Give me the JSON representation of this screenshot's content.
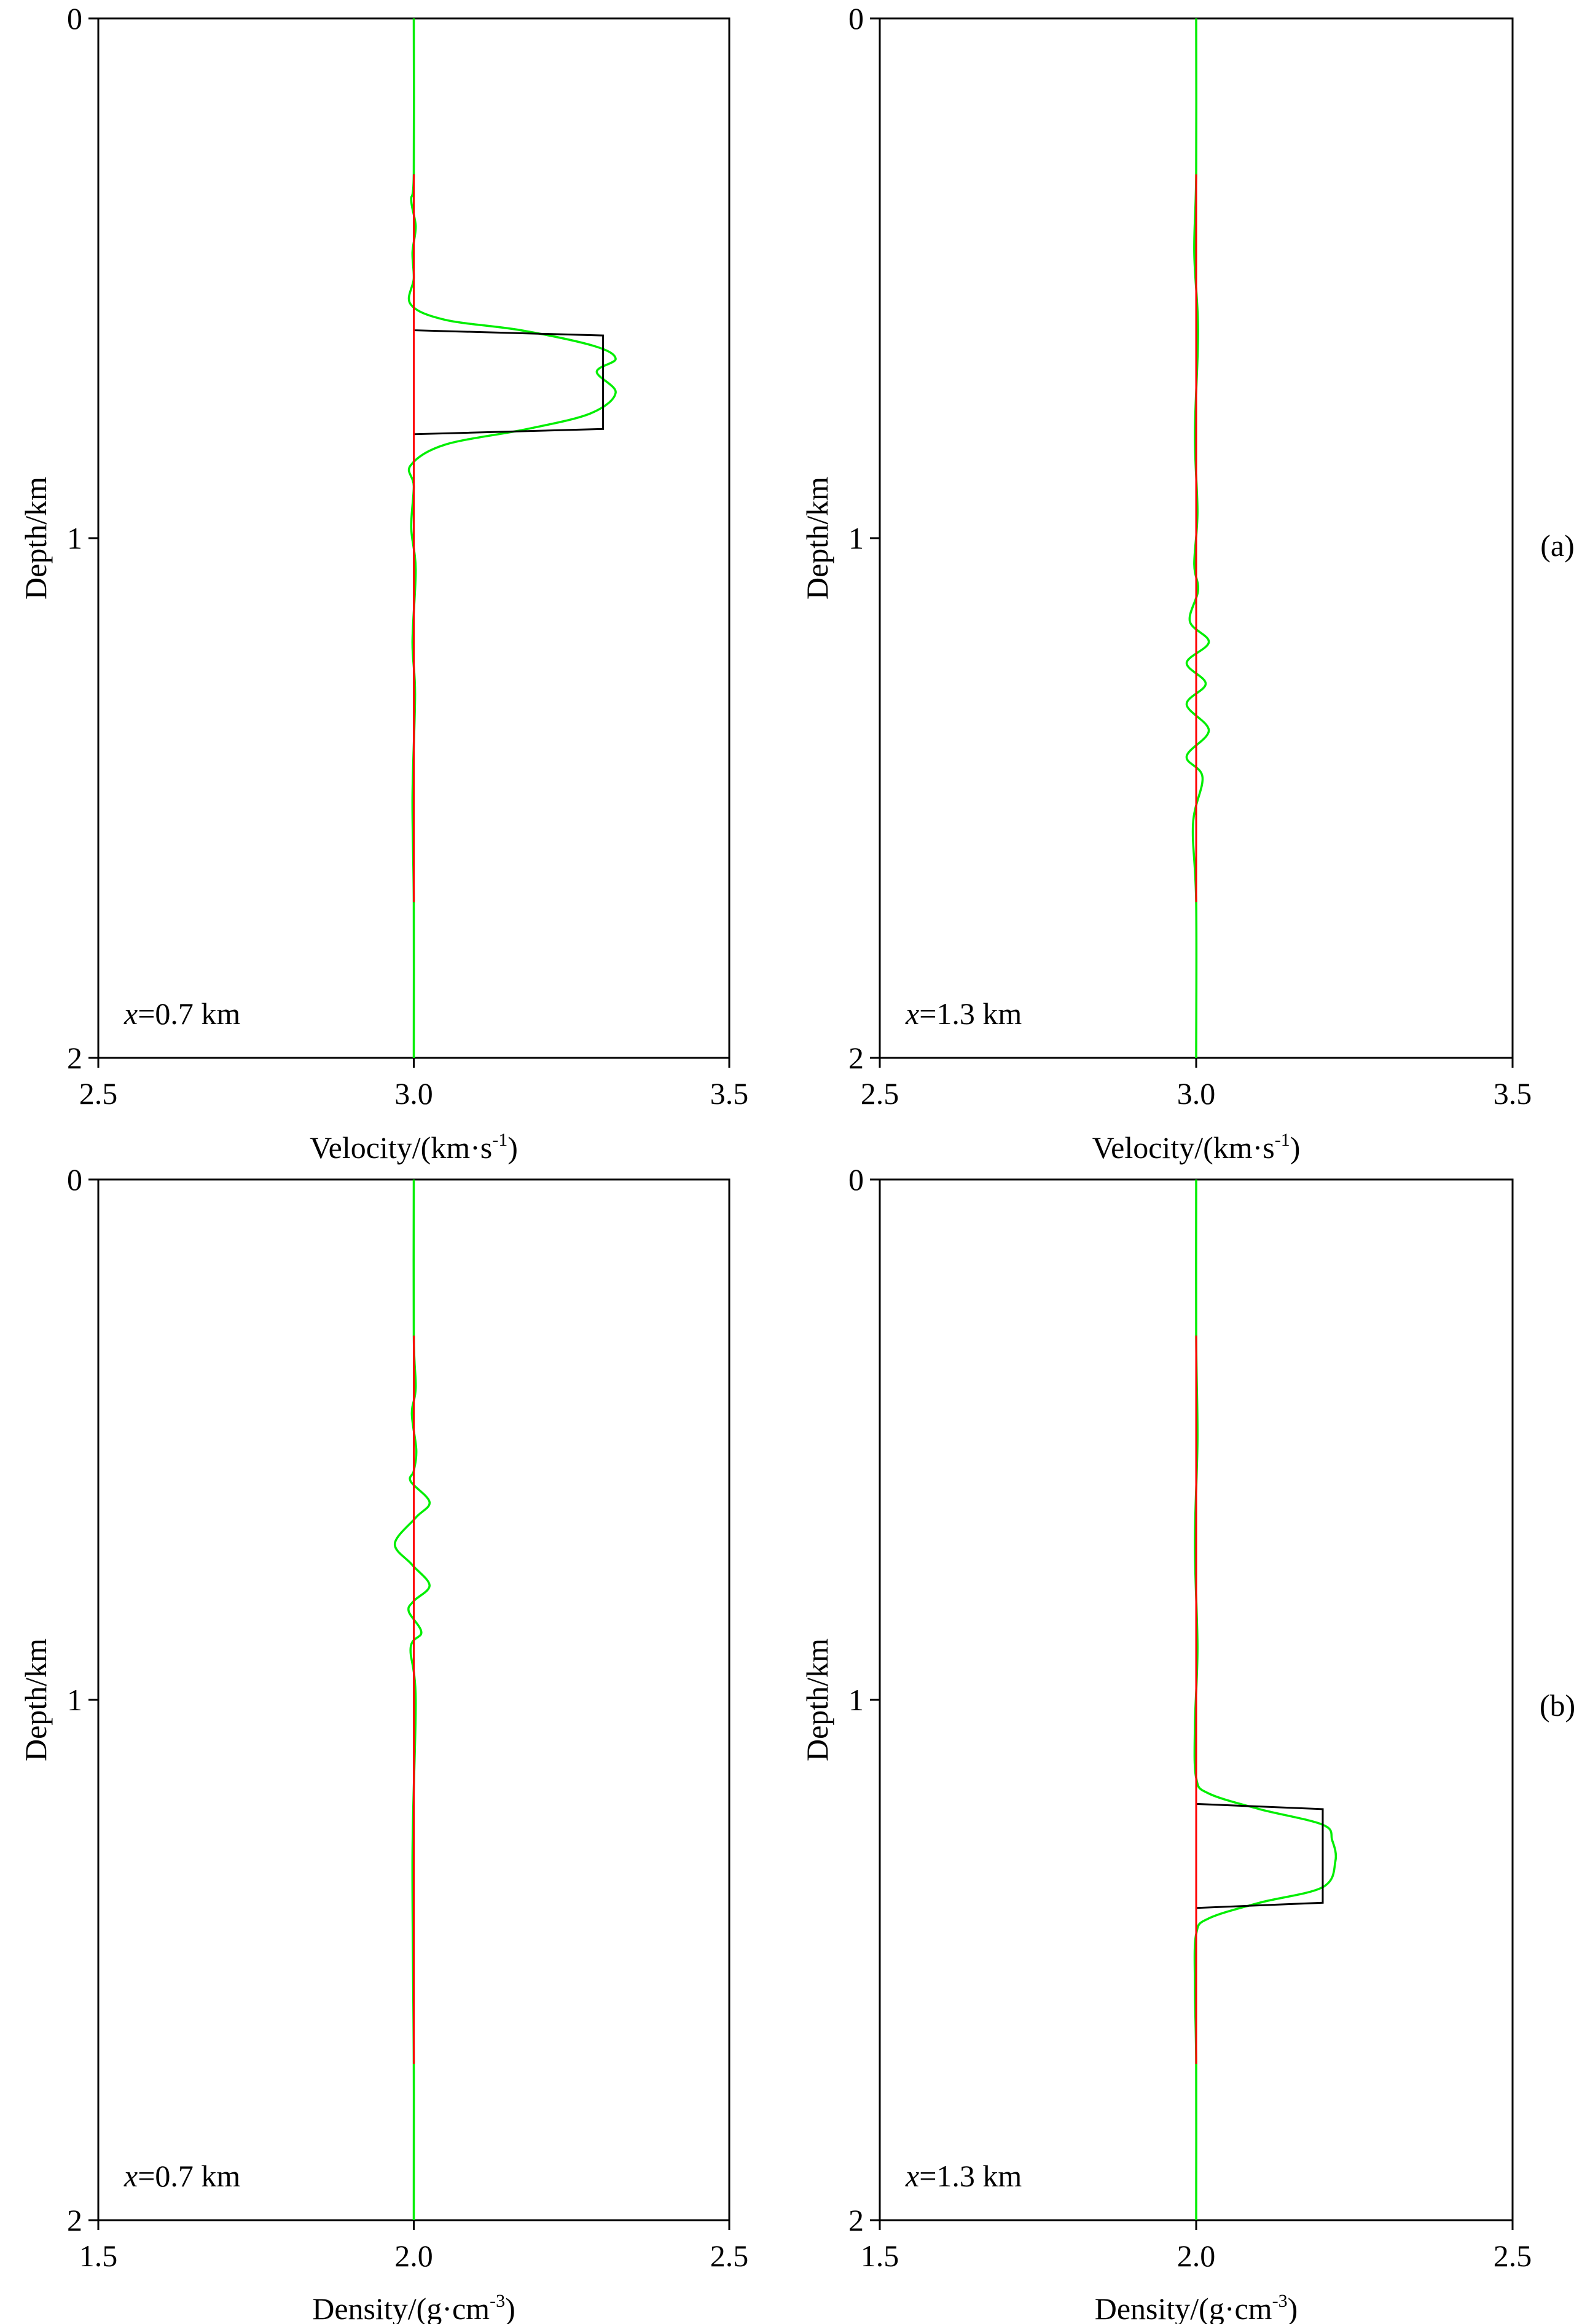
{
  "figure_labels": [
    "(a)",
    "(b)"
  ],
  "colors": {
    "true_model": "#000000",
    "initial_model": "#ff0000",
    "inverted_model": "#00ee00"
  },
  "chart_data": [
    {
      "type": "line",
      "panel": "a-left",
      "xlabel": "Velocity/(km·s",
      "xlabel_sup": "-1",
      "xlabel_end": ")",
      "ylabel": "Depth/km",
      "xlim": [
        2.5,
        3.5
      ],
      "ylim": [
        0,
        2
      ],
      "xticks": [
        "2.5",
        "3.0",
        "3.5"
      ],
      "yticks": [
        "0",
        "1",
        "2"
      ],
      "annotation_var": "x",
      "annotation_value": "=0.7 km",
      "baseline": 3.0,
      "anomaly": {
        "top": 0.6,
        "bottom": 0.79,
        "value": 3.3
      },
      "series": [
        {
          "name": "true",
          "x": [
            3.0,
            3.0,
            3.3,
            3.3,
            3.0,
            3.0
          ],
          "depth": [
            0.3,
            0.6,
            0.61,
            0.79,
            0.8,
            1.7
          ]
        },
        {
          "name": "initial",
          "x": [
            3.0,
            3.0
          ],
          "depth": [
            0.3,
            1.7
          ]
        },
        {
          "name": "inverted",
          "x": [
            3.0,
            3.0,
            2.996,
            3.003,
            2.998,
            3.0,
            2.995,
            3.05,
            3.17,
            3.285,
            3.32,
            3.29,
            3.32,
            3.28,
            3.18,
            3.05,
            2.995,
            3.0,
            2.996,
            3.003,
            2.998,
            3.002,
            2.998,
            3.0,
            3.0
          ],
          "depth": [
            0.0,
            0.3,
            0.35,
            0.4,
            0.45,
            0.5,
            0.55,
            0.58,
            0.6,
            0.63,
            0.655,
            0.68,
            0.72,
            0.76,
            0.79,
            0.82,
            0.86,
            0.9,
            0.98,
            1.06,
            1.2,
            1.3,
            1.5,
            1.7,
            2.0
          ]
        }
      ]
    },
    {
      "type": "line",
      "panel": "a-right",
      "xlabel": "Velocity/(km·s",
      "xlabel_sup": "-1",
      "xlabel_end": ")",
      "ylabel": "Depth/km",
      "xlim": [
        2.5,
        3.5
      ],
      "ylim": [
        0,
        2
      ],
      "xticks": [
        "2.5",
        "3.0",
        "3.5"
      ],
      "yticks": [
        "0",
        "1",
        "2"
      ],
      "annotation_var": "x",
      "annotation_value": "=1.3 km",
      "baseline": 3.0,
      "series": [
        {
          "name": "initial",
          "x": [
            3.0,
            3.0
          ],
          "depth": [
            0.3,
            1.7
          ]
        },
        {
          "name": "inverted",
          "x": [
            3.0,
            3.0,
            2.997,
            3.003,
            2.998,
            3.002,
            2.997,
            3.003,
            2.99,
            3.02,
            2.985,
            3.015,
            2.985,
            3.02,
            2.985,
            3.01,
            2.995,
            3.0,
            3.0
          ],
          "depth": [
            0.0,
            0.3,
            0.45,
            0.6,
            0.8,
            0.95,
            1.05,
            1.1,
            1.16,
            1.2,
            1.24,
            1.28,
            1.32,
            1.37,
            1.42,
            1.46,
            1.55,
            1.7,
            2.0
          ]
        }
      ]
    },
    {
      "type": "line",
      "panel": "b-left",
      "xlabel": "Density/(g·cm",
      "xlabel_sup": "-3",
      "xlabel_end": ")",
      "ylabel": "Depth/km",
      "xlim": [
        1.5,
        2.5
      ],
      "ylim": [
        0,
        2
      ],
      "xticks": [
        "1.5",
        "2.0",
        "2.5"
      ],
      "yticks": [
        "0",
        "1",
        "2"
      ],
      "annotation_var": "x",
      "annotation_value": "=0.7 km",
      "baseline": 2.0,
      "series": [
        {
          "name": "initial",
          "x": [
            2.0,
            2.0
          ],
          "depth": [
            0.3,
            1.7
          ]
        },
        {
          "name": "inverted",
          "x": [
            2.0,
            2.0,
            2.003,
            1.997,
            2.004,
            2.0,
            1.995,
            2.025,
            2.003,
            1.97,
            1.997,
            2.025,
            2.0,
            1.992,
            2.012,
            1.995,
            2.003,
            1.998,
            2.0,
            2.0
          ],
          "depth": [
            0.0,
            0.3,
            0.4,
            0.45,
            0.52,
            0.56,
            0.58,
            0.62,
            0.65,
            0.7,
            0.74,
            0.78,
            0.81,
            0.83,
            0.87,
            0.9,
            1.0,
            1.3,
            1.7,
            2.0
          ]
        }
      ]
    },
    {
      "type": "line",
      "panel": "b-right",
      "xlabel": "Density/(g·cm",
      "xlabel_sup": "-3",
      "xlabel_end": ")",
      "ylabel": "Depth/km",
      "xlim": [
        1.5,
        2.5
      ],
      "ylim": [
        0,
        2
      ],
      "xticks": [
        "1.5",
        "2.0",
        "2.5"
      ],
      "yticks": [
        "0",
        "1",
        "2"
      ],
      "annotation_var": "x",
      "annotation_value": "=1.3 km",
      "baseline": 2.0,
      "anomaly": {
        "top": 1.2,
        "bottom": 1.39,
        "value": 2.2
      },
      "series": [
        {
          "name": "true",
          "x": [
            2.0,
            2.0,
            2.2,
            2.2,
            2.0,
            2.0
          ],
          "depth": [
            0.3,
            1.2,
            1.21,
            1.39,
            1.4,
            1.7
          ]
        },
        {
          "name": "initial",
          "x": [
            2.0,
            2.0
          ],
          "depth": [
            0.3,
            1.7
          ]
        },
        {
          "name": "inverted",
          "x": [
            2.0,
            2.0,
            2.002,
            1.998,
            2.002,
            1.998,
            2.0,
            2.02,
            2.1,
            2.2,
            2.215,
            2.22,
            2.2,
            2.1,
            2.02,
            2.0,
            1.998,
            2.0,
            2.0
          ],
          "depth": [
            0.0,
            0.3,
            0.5,
            0.7,
            0.9,
            1.05,
            1.15,
            1.18,
            1.21,
            1.24,
            1.27,
            1.31,
            1.36,
            1.39,
            1.42,
            1.45,
            1.55,
            1.7,
            2.0
          ]
        }
      ]
    }
  ]
}
